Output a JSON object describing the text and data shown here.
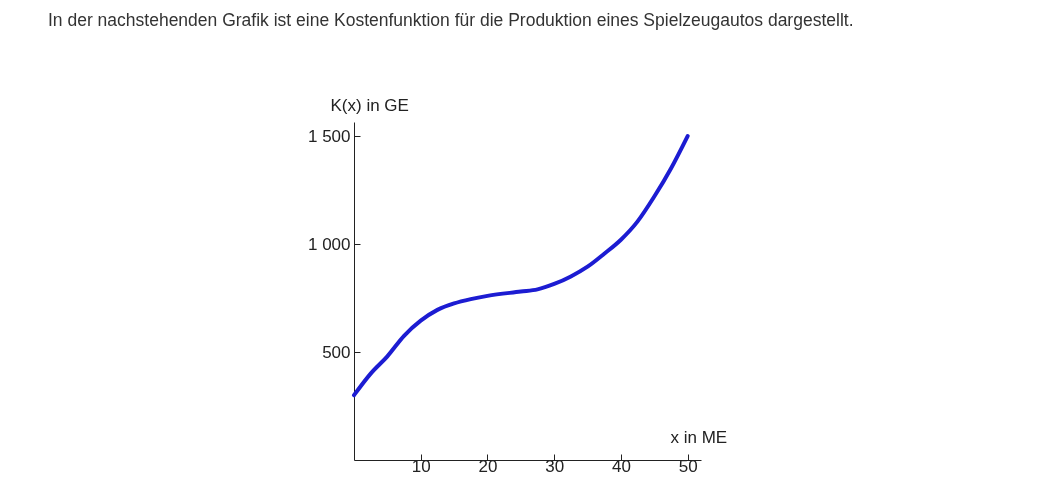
{
  "chart_data": {
    "type": "line",
    "title": "In der nachstehenden Grafik ist eine Kostenfunktion für die Produktion eines Spielzeugautos dargestellt.",
    "xlabel": "x in ME",
    "ylabel": "K(x) in GE",
    "x": [
      0,
      2.5,
      5,
      7.5,
      10,
      12.5,
      15,
      17.5,
      20,
      25,
      27.5,
      30,
      32.5,
      35,
      37.5,
      40,
      42.5,
      45,
      47.5,
      50
    ],
    "series": [
      {
        "color": "#1c1cd2",
        "values": [
          300,
          400,
          480,
          575,
          645,
          695,
          725,
          745,
          760,
          780,
          790,
          815,
          850,
          895,
          955,
          1020,
          1105,
          1220,
          1350,
          1500
        ]
      }
    ],
    "xlim": [
      0,
      52
    ],
    "ylim": [
      0,
      1565
    ],
    "xticks": [
      10,
      20,
      30,
      40,
      50
    ],
    "yticks": [
      500,
      {
        "value": 1000,
        "label": "1 000"
      },
      {
        "value": 1500,
        "label": "1 500"
      }
    ]
  }
}
